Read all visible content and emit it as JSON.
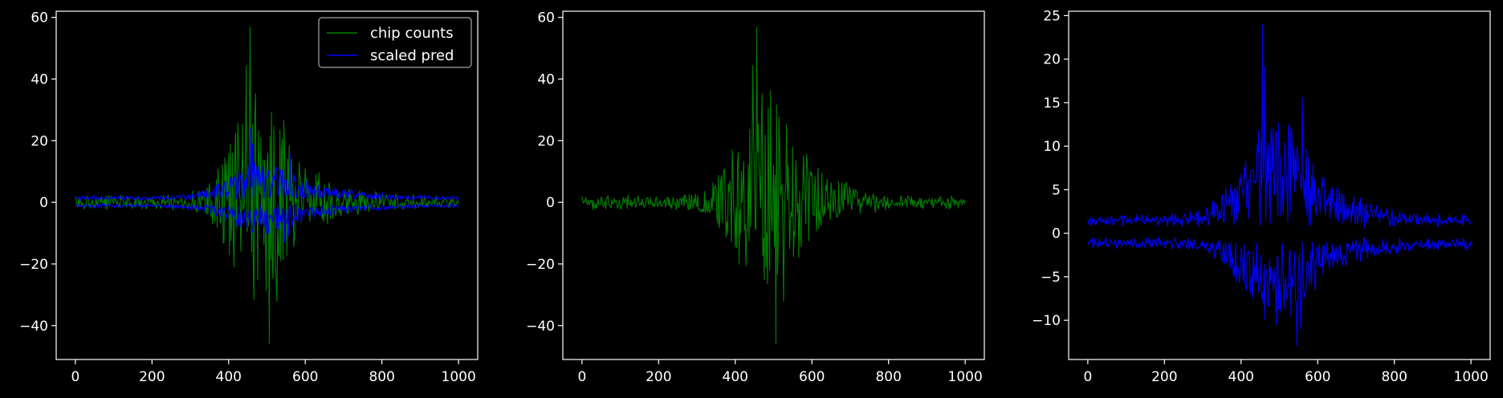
{
  "colors": {
    "background": "#000000",
    "axes": "#ffffff",
    "chip": "#008000",
    "pred": "#0000ff"
  },
  "chart_data": [
    {
      "type": "line",
      "x_range": [
        0,
        1000
      ],
      "xlim": [
        -50,
        1050
      ],
      "ylim": [
        -51,
        62
      ],
      "xticks": [
        0,
        200,
        400,
        600,
        800,
        1000
      ],
      "yticks": [
        -40,
        -20,
        0,
        20,
        40,
        60
      ],
      "legend_placement": "top-right",
      "legend": [
        "chip counts",
        "scaled pred"
      ],
      "series": [
        {
          "name": "chip counts",
          "color": "#008000",
          "approx_max": 57,
          "approx_min": -46,
          "peak_x": 455,
          "trough_x": 505
        },
        {
          "name": "scaled pred",
          "color": "#0000ff",
          "approx_max": 24,
          "approx_min": -13,
          "peak_x": 455,
          "trough_x": 545
        }
      ]
    },
    {
      "type": "line",
      "x_range": [
        0,
        1000
      ],
      "xlim": [
        -50,
        1050
      ],
      "ylim": [
        -51,
        62
      ],
      "xticks": [
        0,
        200,
        400,
        600,
        800,
        1000
      ],
      "yticks": [
        -40,
        -20,
        0,
        20,
        40,
        60
      ],
      "series": [
        {
          "color": "#008000",
          "approx_max": 57,
          "approx_min": -46,
          "peak_x": 455,
          "trough_x": 505
        }
      ]
    },
    {
      "type": "line",
      "x_range": [
        0,
        1000
      ],
      "xlim": [
        -50,
        1050
      ],
      "ylim": [
        -14.5,
        25.5
      ],
      "xticks": [
        0,
        200,
        400,
        600,
        800,
        1000
      ],
      "yticks": [
        -10,
        -5,
        0,
        5,
        10,
        15,
        20,
        25
      ],
      "series": [
        {
          "color": "#0000ff",
          "approx_max": 24,
          "approx_min": -13,
          "peak_x": 455,
          "trough_x": 545
        }
      ]
    }
  ]
}
